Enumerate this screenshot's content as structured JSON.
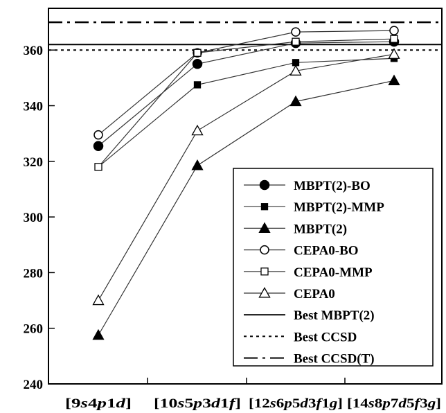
{
  "chart_data": {
    "type": "line",
    "title": "",
    "xlabel": "",
    "ylabel": "",
    "categories": [
      "[9s4p1d]",
      "[10s5p3d1f]",
      "[12s6p5d3f1g]",
      "[14s8p7d5f3g]"
    ],
    "category_parts": [
      [
        {
          "t": "[9",
          "i": false
        },
        {
          "t": "s",
          "i": true
        },
        {
          "t": "4",
          "i": false
        },
        {
          "t": "p",
          "i": true
        },
        {
          "t": "1",
          "i": false
        },
        {
          "t": "d",
          "i": true
        },
        {
          "t": "]",
          "i": false
        }
      ],
      [
        {
          "t": "[10",
          "i": false
        },
        {
          "t": "s",
          "i": true
        },
        {
          "t": "5",
          "i": false
        },
        {
          "t": "p",
          "i": true
        },
        {
          "t": "3",
          "i": false
        },
        {
          "t": "d",
          "i": true
        },
        {
          "t": "1",
          "i": false
        },
        {
          "t": "f",
          "i": true
        },
        {
          "t": "]",
          "i": false
        }
      ],
      [
        {
          "t": "[12",
          "i": false
        },
        {
          "t": "s",
          "i": true
        },
        {
          "t": "6",
          "i": false
        },
        {
          "t": "p",
          "i": true
        },
        {
          "t": "5",
          "i": false
        },
        {
          "t": "d",
          "i": true
        },
        {
          "t": "3",
          "i": false
        },
        {
          "t": "f",
          "i": true
        },
        {
          "t": "1",
          "i": false
        },
        {
          "t": "g",
          "i": true
        },
        {
          "t": "]",
          "i": false
        }
      ],
      [
        {
          "t": "[14",
          "i": false
        },
        {
          "t": "s",
          "i": true
        },
        {
          "t": "8",
          "i": false
        },
        {
          "t": "p",
          "i": true
        },
        {
          "t": "7",
          "i": false
        },
        {
          "t": "d",
          "i": true
        },
        {
          "t": "5",
          "i": false
        },
        {
          "t": "f",
          "i": true
        },
        {
          "t": "3",
          "i": false
        },
        {
          "t": "g",
          "i": true
        },
        {
          "t": "]",
          "i": false
        }
      ]
    ],
    "ylim": [
      240,
      375
    ],
    "yticks": [
      240,
      260,
      280,
      300,
      320,
      340,
      360
    ],
    "series": [
      {
        "name": "MBPT(2)-BO",
        "marker": "circle-filled",
        "values": [
          325.5,
          355,
          362.5,
          363
        ]
      },
      {
        "name": "MBPT(2)-MMP",
        "marker": "square-filled",
        "values": [
          318,
          347.5,
          355.5,
          357
        ]
      },
      {
        "name": "MBPT(2)",
        "marker": "triangle-filled",
        "values": [
          257.5,
          318.5,
          341.5,
          349
        ]
      },
      {
        "name": "CEPA0-BO",
        "marker": "circle-open",
        "values": [
          329.5,
          359,
          366.5,
          367
        ]
      },
      {
        "name": "CEPA0-MMP",
        "marker": "square-open",
        "values": [
          318,
          359,
          363,
          364
        ]
      },
      {
        "name": "CEPA0",
        "marker": "triangle-open",
        "values": [
          270,
          331,
          352.5,
          358.5
        ]
      }
    ],
    "reference_lines": [
      {
        "name": "Best MBPT(2)",
        "value": 362,
        "style": "solid"
      },
      {
        "name": "Best CCSD",
        "value": 360,
        "style": "dotted"
      },
      {
        "name": "Best CCSD(T)",
        "value": 370,
        "style": "dashdot"
      }
    ],
    "legend_position": "bottom-right",
    "grid": false
  }
}
